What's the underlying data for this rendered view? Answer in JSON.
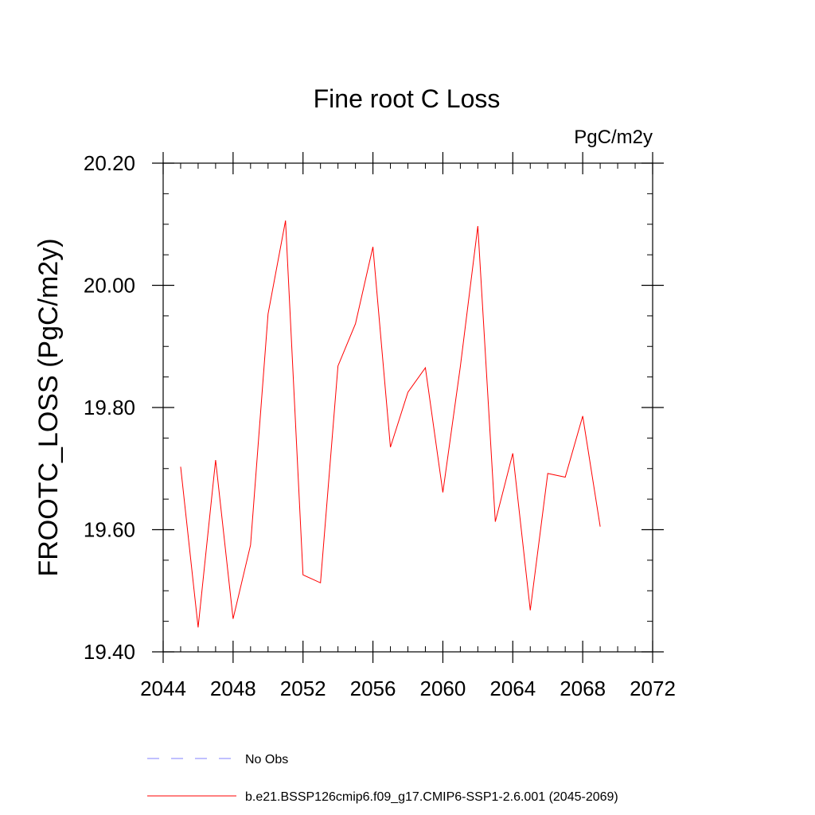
{
  "chart_data": {
    "type": "line",
    "title": "Fine root C Loss",
    "units": "PgC/m2y",
    "ylabel": "FROOTC_LOSS  (PgC/m2y)",
    "xlabel": "",
    "xlim": [
      2044,
      2072
    ],
    "ylim": [
      19.4,
      20.2
    ],
    "x_ticks": [
      2044,
      2048,
      2052,
      2056,
      2060,
      2064,
      2068,
      2072
    ],
    "x_tick_labels": [
      "2044",
      "2048",
      "2052",
      "2056",
      "2060",
      "2064",
      "2068",
      "2072"
    ],
    "x_minor_step": 1,
    "y_ticks": [
      19.4,
      19.6,
      19.8,
      20.0,
      20.2
    ],
    "y_tick_labels": [
      "19.40",
      "19.60",
      "19.80",
      "20.00",
      "20.20"
    ],
    "y_minor_step": 0.05,
    "grid": false,
    "legend_position": "bottom",
    "series": [
      {
        "name": "b.e21.BSSP126cmip6.f09_g17.CMIP6-SSP1-2.6.001 (2045-2069)",
        "color": "#ff0000",
        "style": "solid",
        "x": [
          2045,
          2046,
          2047,
          2048,
          2049,
          2050,
          2051,
          2052,
          2053,
          2054,
          2055,
          2056,
          2057,
          2058,
          2059,
          2060,
          2061,
          2062,
          2063,
          2064,
          2065,
          2066,
          2067,
          2068,
          2069
        ],
        "y": [
          19.703,
          19.44,
          19.714,
          19.454,
          19.575,
          19.953,
          20.106,
          19.526,
          19.513,
          19.868,
          19.937,
          20.063,
          19.735,
          19.825,
          19.865,
          19.661,
          19.867,
          20.097,
          19.613,
          19.725,
          19.468,
          19.692,
          19.686,
          19.786,
          19.605
        ]
      }
    ],
    "legend": [
      {
        "label": "No Obs",
        "color": "#8080ff",
        "style": "dashed"
      },
      {
        "label": "b.e21.BSSP126cmip6.f09_g17.CMIP6-SSP1-2.6.001 (2045-2069)",
        "color": "#ff0000",
        "style": "solid"
      }
    ]
  }
}
